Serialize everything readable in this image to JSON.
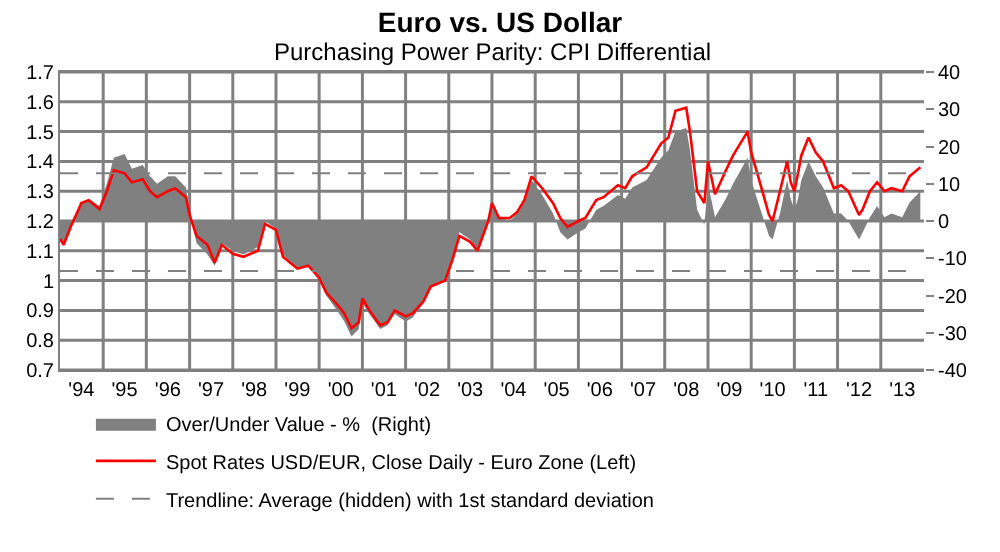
{
  "chart_data": {
    "type": "line",
    "title": "Euro vs. US Dollar",
    "subtitle": "Purchasing Power Parity: CPI Differential",
    "x": [
      "1994-01",
      "1994-02",
      "1994-04",
      "1994-07",
      "1994-09",
      "1994-12",
      "1995-02",
      "1995-04",
      "1995-07",
      "1995-09",
      "1995-12",
      "1996-02",
      "1996-04",
      "1996-07",
      "1996-09",
      "1996-12",
      "1997-01",
      "1997-03",
      "1997-06",
      "1997-08",
      "1997-10",
      "1998-01",
      "1998-04",
      "1998-08",
      "1998-10",
      "1999-01",
      "1999-03",
      "1999-07",
      "1999-10",
      "2000-01",
      "2000-03",
      "2000-06",
      "2000-08",
      "2000-10",
      "2000-12",
      "2001-01",
      "2001-03",
      "2001-06",
      "2001-08",
      "2001-10",
      "2002-01",
      "2002-03",
      "2002-06",
      "2002-08",
      "2002-12",
      "2003-02",
      "2003-04",
      "2003-07",
      "2003-09",
      "2003-12",
      "2004-01",
      "2004-03",
      "2004-06",
      "2004-08",
      "2004-10",
      "2004-12",
      "2005-03",
      "2005-06",
      "2005-08",
      "2005-10",
      "2006-01",
      "2006-03",
      "2006-06",
      "2006-08",
      "2006-12",
      "2007-02",
      "2007-04",
      "2007-08",
      "2007-12",
      "2008-02",
      "2008-04",
      "2008-07",
      "2008-08",
      "2008-10",
      "2008-12",
      "2009-01",
      "2009-03",
      "2009-06",
      "2009-08",
      "2009-12",
      "2010-01",
      "2010-03",
      "2010-06",
      "2010-07",
      "2010-09",
      "2010-11",
      "2010-12",
      "2011-01",
      "2011-02",
      "2011-03",
      "2011-05",
      "2011-07",
      "2011-09",
      "2011-12",
      "2012-02",
      "2012-04",
      "2012-07",
      "2012-08",
      "2012-10",
      "2012-12",
      "2013-02",
      "2013-04",
      "2013-07",
      "2013-09",
      "2013-12"
    ],
    "series": [
      {
        "name": "Over/Under Value - %  (Right)",
        "type": "area",
        "axis": "y2",
        "color": "#808080",
        "values": [
          -5,
          -6,
          -2,
          5,
          6,
          4,
          10,
          17,
          18,
          14,
          15,
          12,
          10,
          12,
          12,
          9,
          2,
          -6,
          -9,
          -12,
          -6,
          -8,
          -9,
          -7,
          0,
          -2,
          -9,
          -13,
          -12,
          -16,
          -20,
          -24,
          -27,
          -31,
          -29,
          -22,
          -25,
          -29,
          -28,
          -25,
          -27,
          -26,
          -22,
          -18,
          -16,
          -10,
          -3,
          -5,
          -8,
          0,
          5,
          1,
          0,
          2,
          5,
          11,
          7,
          2,
          -3,
          -5,
          -3,
          -2,
          3,
          4,
          7,
          6,
          9,
          11,
          17,
          19,
          24,
          25,
          19,
          3,
          -1,
          10,
          1,
          6,
          10,
          17,
          11,
          5,
          -4,
          -5,
          2,
          11,
          6,
          3,
          6,
          11,
          16,
          12,
          9,
          2,
          2,
          0,
          -5,
          -3,
          1,
          4,
          1,
          2,
          1,
          5,
          8
        ]
      },
      {
        "name": "Spot Rates USD/EUR, Close Daily - Euro Zone (Left)",
        "color": "#ff0000",
        "values": [
          1.14,
          1.12,
          1.18,
          1.26,
          1.27,
          1.24,
          1.3,
          1.37,
          1.36,
          1.33,
          1.34,
          1.3,
          1.28,
          1.3,
          1.31,
          1.28,
          1.22,
          1.15,
          1.12,
          1.06,
          1.12,
          1.09,
          1.08,
          1.1,
          1.19,
          1.17,
          1.08,
          1.04,
          1.05,
          1.01,
          0.96,
          0.92,
          0.89,
          0.84,
          0.86,
          0.94,
          0.9,
          0.85,
          0.86,
          0.9,
          0.88,
          0.89,
          0.93,
          0.98,
          1.0,
          1.07,
          1.15,
          1.13,
          1.1,
          1.2,
          1.26,
          1.21,
          1.21,
          1.23,
          1.27,
          1.35,
          1.31,
          1.26,
          1.21,
          1.18,
          1.2,
          1.21,
          1.27,
          1.28,
          1.32,
          1.31,
          1.35,
          1.38,
          1.46,
          1.48,
          1.57,
          1.58,
          1.5,
          1.3,
          1.26,
          1.4,
          1.29,
          1.37,
          1.42,
          1.5,
          1.43,
          1.35,
          1.22,
          1.2,
          1.3,
          1.4,
          1.33,
          1.3,
          1.36,
          1.42,
          1.48,
          1.43,
          1.4,
          1.31,
          1.32,
          1.3,
          1.22,
          1.24,
          1.3,
          1.33,
          1.3,
          1.31,
          1.3,
          1.35,
          1.38
        ]
      }
    ],
    "xlim": [
      "1994-01-01",
      "2014-01-01"
    ],
    "xticks": [
      {
        "value": "1994-07",
        "label": "'94"
      },
      {
        "value": "1995-07",
        "label": "'95"
      },
      {
        "value": "1996-07",
        "label": "'96"
      },
      {
        "value": "1997-07",
        "label": "'97"
      },
      {
        "value": "1998-07",
        "label": "'98"
      },
      {
        "value": "1999-07",
        "label": "'99"
      },
      {
        "value": "2000-07",
        "label": "'00"
      },
      {
        "value": "2001-07",
        "label": "'01"
      },
      {
        "value": "2002-07",
        "label": "'02"
      },
      {
        "value": "2003-07",
        "label": "'03"
      },
      {
        "value": "2004-07",
        "label": "'04"
      },
      {
        "value": "2005-07",
        "label": "'05"
      },
      {
        "value": "2006-07",
        "label": "'06"
      },
      {
        "value": "2007-07",
        "label": "'07"
      },
      {
        "value": "2008-07",
        "label": "'08"
      },
      {
        "value": "2009-07",
        "label": "'09"
      },
      {
        "value": "2010-07",
        "label": "'10"
      },
      {
        "value": "2011-07",
        "label": "'11"
      },
      {
        "value": "2012-07",
        "label": "'12"
      },
      {
        "value": "2013-07",
        "label": "'13"
      },
      {
        "value": "1995-01",
        "label": null
      },
      {
        "value": "1996-01",
        "label": null
      },
      {
        "value": "1997-01",
        "label": null
      },
      {
        "value": "1998-01",
        "label": null
      },
      {
        "value": "1999-01",
        "label": null
      },
      {
        "value": "2000-01",
        "label": null
      },
      {
        "value": "2001-01",
        "label": null
      },
      {
        "value": "2002-01",
        "label": null
      },
      {
        "value": "2003-01",
        "label": null
      },
      {
        "value": "2004-01",
        "label": null
      },
      {
        "value": "2005-01",
        "label": null
      },
      {
        "value": "2006-01",
        "label": null
      },
      {
        "value": "2007-01",
        "label": null
      },
      {
        "value": "2008-01",
        "label": null
      },
      {
        "value": "2009-01",
        "label": null
      },
      {
        "value": "2010-01",
        "label": null
      },
      {
        "value": "2011-01",
        "label": null
      },
      {
        "value": "2012-01",
        "label": null
      },
      {
        "value": "2013-01",
        "label": null
      }
    ],
    "ylim": [
      0.7,
      1.7
    ],
    "yticks": [
      0.7,
      {
        "value": 0.8,
        "label": "0.8"
      },
      {
        "value": 0.9,
        "label": "0.9"
      },
      1,
      1.1,
      1.2,
      1.3,
      1.4,
      1.5,
      1.6,
      1.7
    ],
    "y2lim": [
      -40,
      40
    ],
    "y2ticks": [
      {
        "value": -40,
        "label": "-40"
      },
      {
        "value": -30,
        "label": "-30"
      },
      {
        "value": -20,
        "label": "-20"
      },
      {
        "value": -10,
        "label": "-10"
      },
      0,
      10,
      20,
      30,
      40
    ],
    "ref_lines": [
      {
        "axis": "y2",
        "value": 12.8,
        "label": "Trendline: Average (hidden) with 1st standard deviation",
        "color": "#808080",
        "line_style": "dashed"
      },
      {
        "axis": "y2",
        "value": -13.4,
        "color": "#808080",
        "line_style": "dashed"
      }
    ],
    "grid": true,
    "legend": "bottom"
  }
}
